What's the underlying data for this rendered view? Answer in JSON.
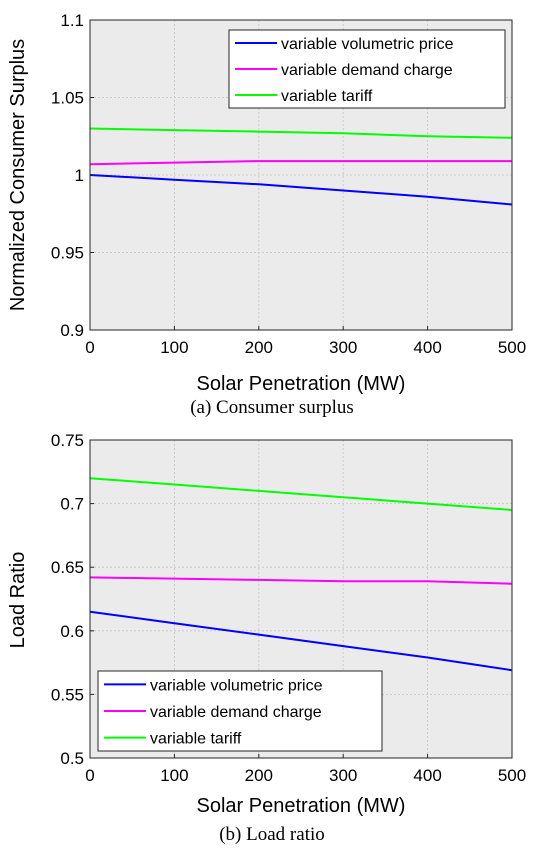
{
  "chart_data": [
    {
      "type": "line",
      "caption": "(a) Consumer surplus",
      "xlabel": "Solar Penetration (MW)",
      "ylabel": "Normalized Consumer Surplus",
      "xlim": [
        0,
        500
      ],
      "ylim": [
        0.9,
        1.1
      ],
      "xticks": [
        0,
        100,
        200,
        300,
        400,
        500
      ],
      "yticks": [
        0.9,
        0.95,
        1,
        1.05,
        1.1
      ],
      "xtick_labels": [
        "0",
        "100",
        "200",
        "300",
        "400",
        "500"
      ],
      "ytick_labels": [
        "0.9",
        "0.95",
        "1",
        "1.05",
        "1.1"
      ],
      "grid": true,
      "legend_position": "top-right",
      "x": [
        0,
        100,
        200,
        300,
        400,
        500
      ],
      "series": [
        {
          "name": "variable volumetric price",
          "color": "#0000ff",
          "values": [
            1.0,
            0.997,
            0.994,
            0.99,
            0.986,
            0.981
          ]
        },
        {
          "name": "variable demand charge",
          "color": "#ff00ff",
          "values": [
            1.007,
            1.008,
            1.009,
            1.009,
            1.009,
            1.009
          ]
        },
        {
          "name": "variable tariff",
          "color": "#00ff00",
          "values": [
            1.03,
            1.029,
            1.028,
            1.027,
            1.025,
            1.024
          ]
        }
      ]
    },
    {
      "type": "line",
      "caption": "(b) Load ratio",
      "xlabel": "Solar Penetration (MW)",
      "ylabel": "Load Ratio",
      "xlim": [
        0,
        500
      ],
      "ylim": [
        0.5,
        0.75
      ],
      "xticks": [
        0,
        100,
        200,
        300,
        400,
        500
      ],
      "yticks": [
        0.5,
        0.55,
        0.6,
        0.65,
        0.7,
        0.75
      ],
      "xtick_labels": [
        "0",
        "100",
        "200",
        "300",
        "400",
        "500"
      ],
      "ytick_labels": [
        "0.5",
        "0.55",
        "0.6",
        "0.65",
        "0.7",
        "0.75"
      ],
      "grid": true,
      "legend_position": "bottom-left",
      "x": [
        0,
        100,
        200,
        300,
        400,
        500
      ],
      "series": [
        {
          "name": "variable volumetric price",
          "color": "#0000ff",
          "values": [
            0.615,
            0.606,
            0.597,
            0.588,
            0.579,
            0.569
          ]
        },
        {
          "name": "variable demand charge",
          "color": "#ff00ff",
          "values": [
            0.642,
            0.641,
            0.64,
            0.639,
            0.639,
            0.637
          ]
        },
        {
          "name": "variable tariff",
          "color": "#00ff00",
          "values": [
            0.72,
            0.715,
            0.71,
            0.705,
            0.7,
            0.695
          ]
        }
      ]
    }
  ]
}
